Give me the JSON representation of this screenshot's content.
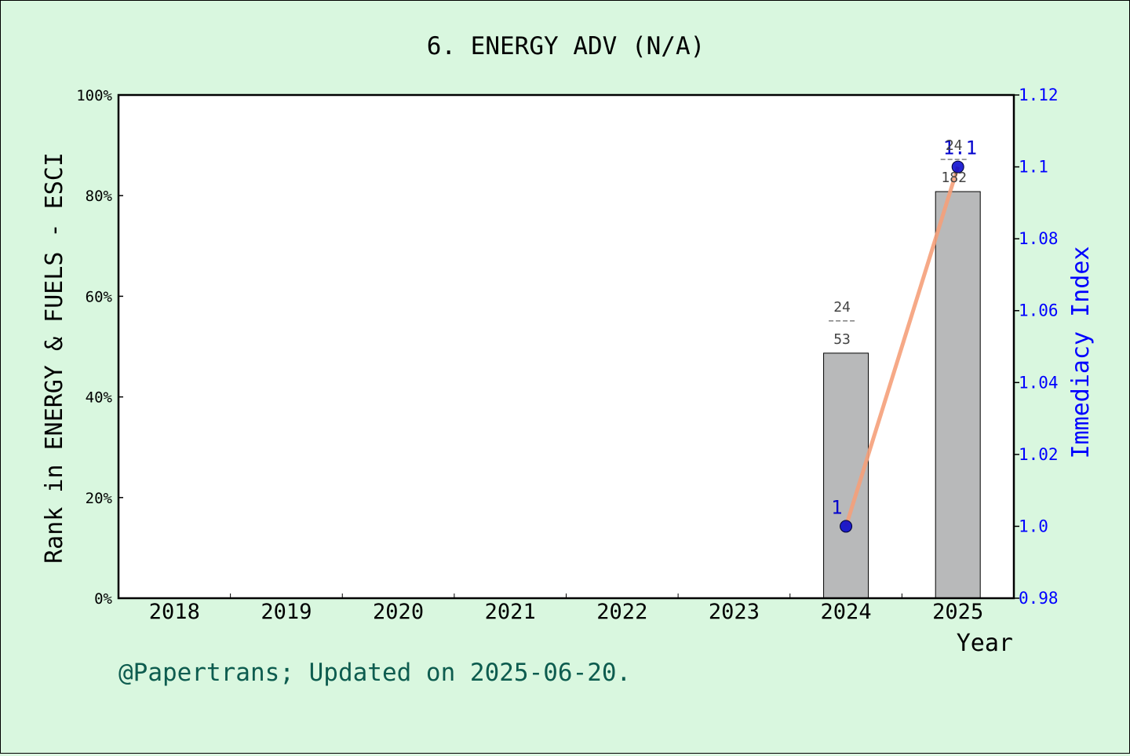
{
  "chart_data": {
    "type": "bar",
    "title": "6. ENERGY ADV (N/A)",
    "xlabel": "Year",
    "ylabel": "Rank in ENERGY & FUELS - ESCI",
    "y2label": "Immediacy Index",
    "categories": [
      "2018",
      "2019",
      "2020",
      "2021",
      "2022",
      "2023",
      "2024",
      "2025"
    ],
    "ylim": [
      0,
      100
    ],
    "y_ticks": [
      "0%",
      "20%",
      "40%",
      "60%",
      "80%",
      "100%"
    ],
    "y2lim": [
      0.98,
      1.12
    ],
    "y2_ticks": [
      "0.98",
      "1.0",
      "1.02",
      "1.04",
      "1.06",
      "1.08",
      "1.1",
      "1.12"
    ],
    "series": [
      {
        "kind": "bar",
        "unit": "percent",
        "values": [
          null,
          null,
          null,
          null,
          null,
          null,
          48.7,
          80.8
        ],
        "labels": [
          null,
          null,
          null,
          null,
          null,
          null,
          {
            "num": "24",
            "den": "53"
          },
          {
            "num": "24",
            "den": "182"
          }
        ]
      },
      {
        "kind": "line",
        "axis": "right",
        "values": [
          null,
          null,
          null,
          null,
          null,
          null,
          1.0,
          1.1
        ],
        "labels": [
          null,
          null,
          null,
          null,
          null,
          null,
          "1",
          "1.1"
        ]
      }
    ],
    "colors": {
      "bar_fill": "#b8b9ba",
      "line": "#f5a07a",
      "marker": "#0000cd",
      "right_axis": "#0000ff",
      "footer": "#0d5c4f",
      "background": "#d9f7df"
    },
    "grid": false,
    "footer": "@Papertrans; Updated on 2025-06-20."
  }
}
